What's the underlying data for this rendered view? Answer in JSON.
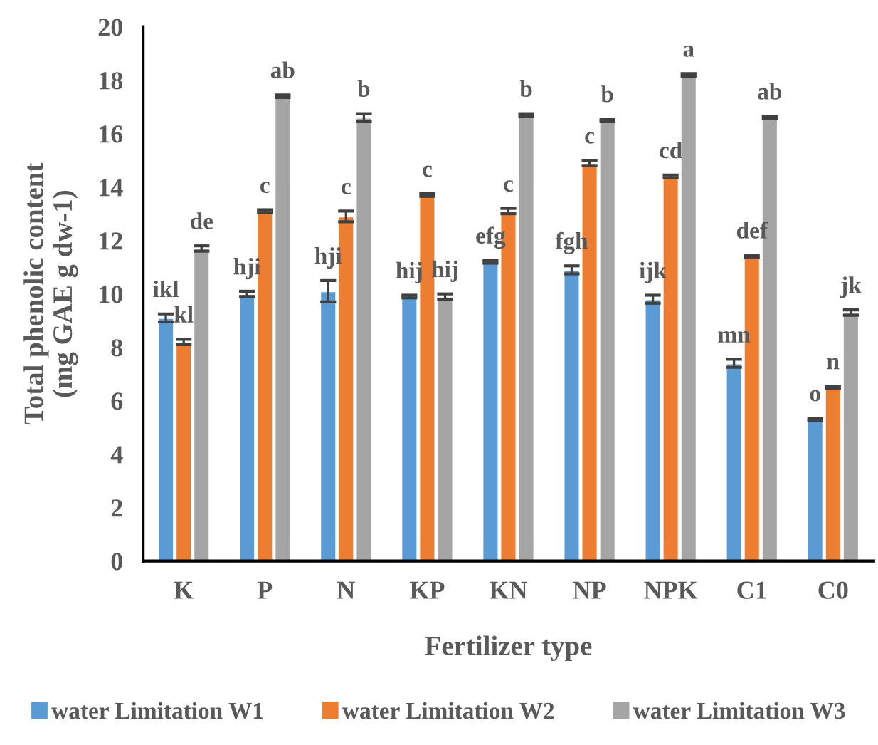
{
  "chart_data": {
    "type": "bar",
    "xlabel": "Fertilizer type",
    "ylabel": "Total phenolic content\n(mg GAE g dw-1)",
    "categories": [
      "K",
      "P",
      "N",
      "KP",
      "KN",
      "NP",
      "NPK",
      "C1",
      "C0"
    ],
    "series": [
      {
        "name": "water Limitation W1",
        "color": "#5b9bd5",
        "values": [
          9.1,
          10.0,
          10.1,
          9.9,
          11.2,
          10.9,
          9.8,
          7.4,
          5.3
        ],
        "errors": [
          0.15,
          0.1,
          0.4,
          0.05,
          0.05,
          0.15,
          0.15,
          0.15,
          0.05
        ],
        "value_labels": [
          "ikl",
          "hji",
          "hji",
          "hij",
          "efg",
          "fgh",
          "ijk",
          "mn",
          "o"
        ]
      },
      {
        "name": "water Limitation W2",
        "color": "#ed7d31",
        "values": [
          8.2,
          13.1,
          12.9,
          13.7,
          13.1,
          14.9,
          14.4,
          11.4,
          6.5
        ],
        "errors": [
          0.1,
          0.05,
          0.2,
          0.05,
          0.1,
          0.1,
          0.05,
          0.05,
          0.05
        ],
        "value_labels": [
          "kl",
          "c",
          "c",
          "c",
          "c",
          "c",
          "cd",
          "def",
          "n"
        ]
      },
      {
        "name": "water Limitation W3",
        "color": "#a5a5a5",
        "values": [
          11.7,
          17.4,
          16.6,
          9.9,
          16.7,
          16.5,
          18.2,
          16.6,
          9.3
        ],
        "errors": [
          0.1,
          0.05,
          0.15,
          0.1,
          0.05,
          0.05,
          0.05,
          0.05,
          0.1
        ],
        "value_labels": [
          "de",
          "ab",
          "b",
          "hij",
          "b",
          "b",
          "a",
          "ab",
          "jk"
        ]
      }
    ],
    "ylim": [
      0,
      20
    ],
    "yticks": [
      0,
      2,
      4,
      6,
      8,
      10,
      12,
      14,
      16,
      18,
      20
    ],
    "grid": false,
    "legend": "bottom"
  }
}
